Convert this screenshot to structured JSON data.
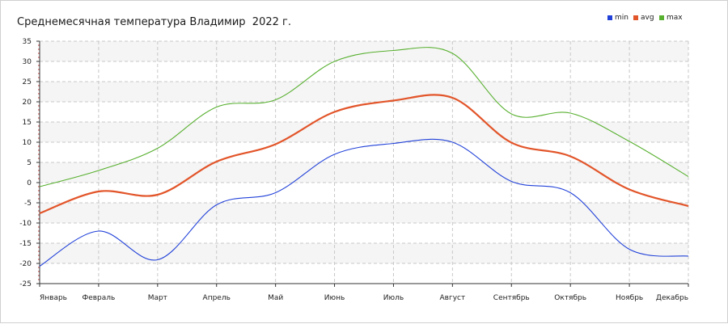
{
  "chart_data": {
    "type": "line",
    "title": "Среднемесячная температура Владимир  2022 г.",
    "categories": [
      "Январь",
      "Февраль",
      "Март",
      "Апрель",
      "Май",
      "Июнь",
      "Июль",
      "Август",
      "Сентябрь",
      "Октябрь",
      "Ноябрь",
      "Декабрь"
    ],
    "series": [
      {
        "name": "min",
        "color": "#2040d8",
        "values": [
          -20.7,
          -12.0,
          -19.1,
          -5.5,
          -2.5,
          7.0,
          9.7,
          10.0,
          0.3,
          -2.5,
          -16.5,
          -18.2
        ]
      },
      {
        "name": "avg",
        "color": "#e2552a",
        "values": [
          -7.6,
          -2.2,
          -3.0,
          5.2,
          9.5,
          17.5,
          20.3,
          21.0,
          9.9,
          6.5,
          -1.7,
          -5.8
        ]
      },
      {
        "name": "max",
        "color": "#58b030",
        "values": [
          -1.0,
          3.0,
          8.5,
          18.7,
          20.5,
          30.0,
          32.7,
          32.0,
          17.0,
          17.2,
          10.2,
          1.5
        ]
      }
    ],
    "ylim": [
      -25,
      35
    ],
    "yticks": [
      35,
      30,
      25,
      20,
      15,
      10,
      5,
      0,
      -5,
      -10,
      -15,
      -20,
      -25
    ],
    "grid": true,
    "legend_position": "top-right"
  }
}
